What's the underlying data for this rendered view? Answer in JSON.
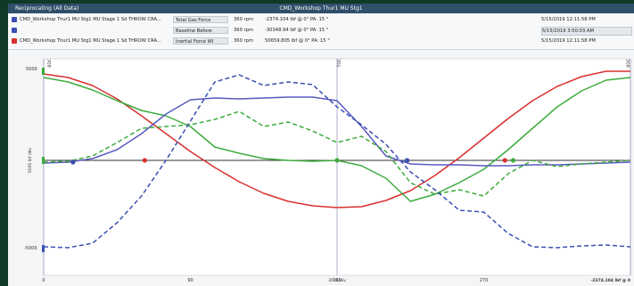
{
  "window": {
    "left_title": "Reciprocating (All Data)",
    "center_title": "CMD_Workshop Thur1 MU Stg1"
  },
  "rows": [
    {
      "source": "CMD_Workshop Thur1 MU Stg1 MU Stage 1  Sd THROW CRA...",
      "measurement": "Total Gas Force",
      "rpm": "360 rpm",
      "values": "-2374.104 lbf @ 0°  PA: 15 °",
      "timestamp": "5/15/2019 12:11:58 PM",
      "color": "#3b4fb0"
    },
    {
      "source": "",
      "measurement": "Baseline Before",
      "rpm": "360 rpm",
      "values": "-30348.94 lbf @ 0°  PA: 15 °",
      "timestamp": "5/15/2019 3:50:03 AM",
      "color": "#3b4fb0"
    },
    {
      "source": "CMD_Workshop Thur1 MU Stg1 MU Stage 1  Sd THROW CRA...",
      "measurement": "Inertial Force WI",
      "rpm": "360 rpm",
      "values": "50659.805 lbf @ 0°  PA: 15 °",
      "timestamp": "5/15/2019 12:11:58 PM",
      "color": "#d93030"
    }
  ],
  "chart_data": {
    "type": "line",
    "xlim": [
      0,
      360
    ],
    "ylim": [
      -1,
      1
    ],
    "x_ticks": [
      0,
      90,
      180,
      270
    ],
    "x_tick_labels": [
      "0",
      "90",
      "180",
      "270"
    ],
    "xlabel": "30 %/div",
    "y_tick_labels_top": "5000",
    "y_tick_labels_bottom": "-5000",
    "ylabel": "5000 lbf /div",
    "marker_labels": [
      "BDC",
      "TDC",
      "BDC"
    ],
    "cursor_readout": "-2374.104 lbf @ 0",
    "series": [
      {
        "color": "#d93030",
        "style": "solid",
        "x": [
          0,
          15,
          30,
          45,
          60,
          75,
          90,
          105,
          120,
          135,
          150,
          165,
          180,
          195,
          210,
          225,
          240,
          255,
          270,
          285,
          300,
          315,
          330,
          345,
          360
        ],
        "y": [
          0.97,
          0.93,
          0.84,
          0.69,
          0.5,
          0.3,
          0.1,
          -0.08,
          -0.24,
          -0.37,
          -0.46,
          -0.51,
          -0.53,
          -0.52,
          -0.45,
          -0.34,
          -0.17,
          0.03,
          0.25,
          0.47,
          0.67,
          0.83,
          0.94,
          1.0,
          1.0
        ]
      },
      {
        "color": "#3dab3d",
        "style": "solid",
        "x": [
          0,
          15,
          30,
          45,
          60,
          75,
          90,
          105,
          120,
          135,
          150,
          165,
          180,
          195,
          210,
          225,
          240,
          255,
          270,
          285,
          300,
          315,
          330,
          345,
          360
        ],
        "y": [
          0.93,
          0.88,
          0.79,
          0.67,
          0.56,
          0.5,
          0.38,
          0.15,
          0.08,
          0.02,
          0.0,
          -0.01,
          0.0,
          -0.06,
          -0.2,
          -0.46,
          -0.38,
          -0.25,
          -0.1,
          0.12,
          0.36,
          0.6,
          0.78,
          0.9,
          0.93
        ]
      },
      {
        "color": "#5a5ac0",
        "style": "solid",
        "x": [
          0,
          15,
          30,
          45,
          60,
          75,
          90,
          105,
          120,
          135,
          150,
          165,
          180,
          195,
          210,
          225,
          240,
          255,
          270,
          285,
          300,
          315,
          330,
          345,
          360
        ],
        "y": [
          -0.03,
          -0.02,
          0.02,
          0.12,
          0.3,
          0.52,
          0.68,
          0.7,
          0.69,
          0.7,
          0.71,
          0.71,
          0.67,
          0.38,
          0.05,
          -0.04,
          -0.05,
          -0.05,
          -0.06,
          -0.06,
          -0.05,
          -0.05,
          -0.04,
          -0.03,
          -0.02
        ]
      },
      {
        "color": "#3dab3d",
        "style": "dashed",
        "x": [
          0,
          15,
          30,
          45,
          60,
          75,
          90,
          105,
          120,
          135,
          150,
          165,
          180,
          195,
          210,
          225,
          240,
          255,
          270,
          285,
          300,
          315,
          330,
          345,
          360
        ],
        "y": [
          -0.02,
          -0.01,
          0.05,
          0.2,
          0.36,
          0.38,
          0.4,
          0.46,
          0.55,
          0.38,
          0.43,
          0.33,
          0.2,
          0.27,
          0.1,
          -0.25,
          -0.38,
          -0.33,
          -0.4,
          -0.15,
          0.0,
          -0.07,
          -0.04,
          -0.02,
          0.0
        ]
      },
      {
        "color": "#3b4fb0",
        "style": "dashed",
        "x": [
          0,
          15,
          30,
          45,
          60,
          75,
          90,
          105,
          120,
          135,
          150,
          165,
          180,
          195,
          210,
          225,
          240,
          255,
          270,
          285,
          300,
          315,
          330,
          345,
          360
        ],
        "y": [
          -0.97,
          -0.98,
          -0.93,
          -0.7,
          -0.4,
          0.0,
          0.44,
          0.88,
          0.96,
          0.84,
          0.88,
          0.85,
          0.6,
          0.4,
          0.18,
          -0.13,
          -0.33,
          -0.56,
          -0.58,
          -0.82,
          -0.97,
          -0.98,
          -0.96,
          -0.95,
          -0.97
        ]
      }
    ],
    "dots": [
      {
        "x": 18,
        "y": -0.02,
        "color": "#3b4fb0"
      },
      {
        "x": 62,
        "y": 0.0,
        "color": "#d93030"
      },
      {
        "x": 180,
        "y": 0.0,
        "color": "#3dab3d"
      },
      {
        "x": 223,
        "y": 0.0,
        "color": "#3b4fb0"
      },
      {
        "x": 283,
        "y": 0.0,
        "color": "#d93030"
      },
      {
        "x": 288,
        "y": 0.0,
        "color": "#3dab3d"
      }
    ]
  }
}
